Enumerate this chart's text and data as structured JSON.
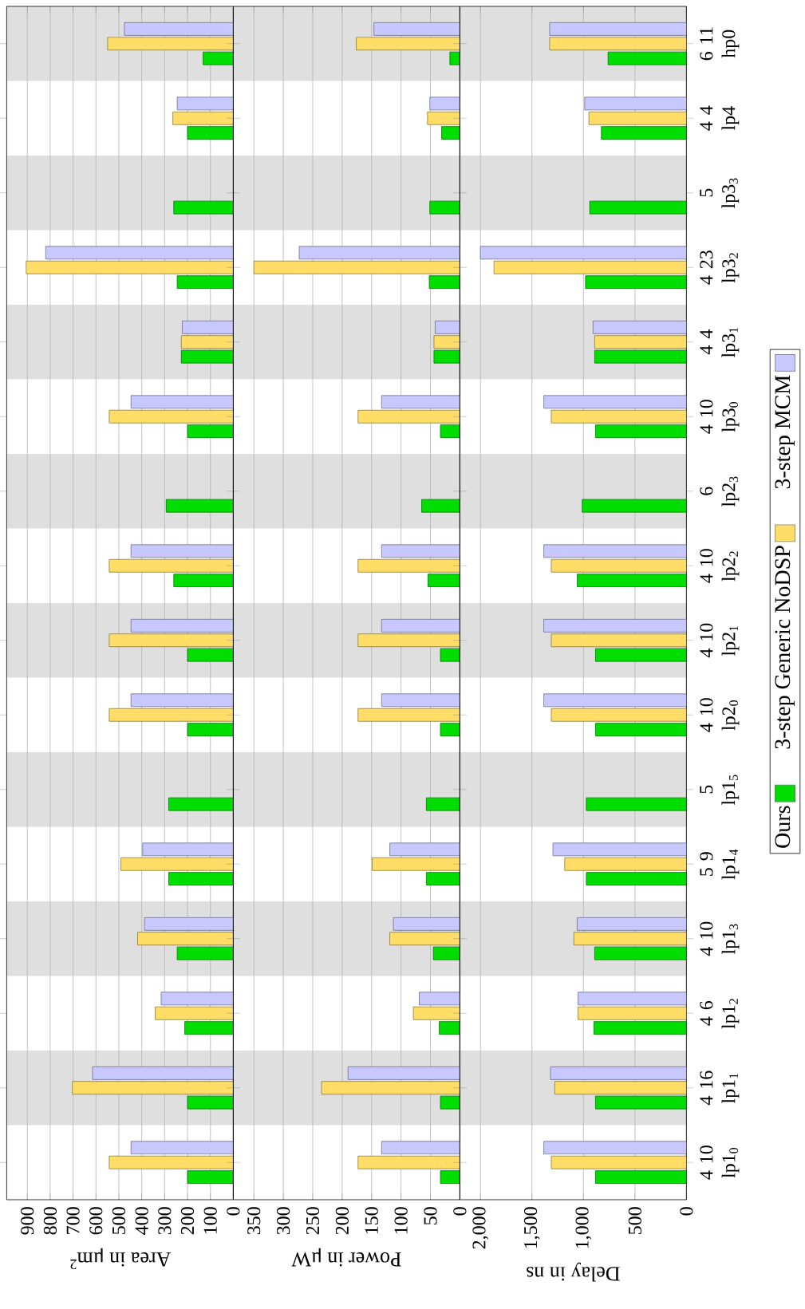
{
  "chart_data": [
    {
      "type": "bar",
      "orientation": "horizontal",
      "xlabel": "Area in μm$^{2}$",
      "tick_labels": "x",
      "grid": "x",
      "categories": [
        null,
        null,
        null,
        null,
        null,
        null,
        null,
        null,
        null,
        null,
        null,
        null,
        null,
        null,
        null,
        null
      ],
      "xlim": [
        990,
        0
      ],
      "xticks": [
        0,
        100,
        200,
        300,
        400,
        500,
        600,
        700,
        800,
        900
      ],
      "series": [
        {
          "color": "#00dd00",
          "values": [
            132,
            200,
            260,
            245,
            227,
            200,
            293,
            260,
            200,
            200,
            282,
            282,
            245,
            212,
            200,
            200
          ]
        },
        {
          "color": "#ffdd66",
          "values": [
            549,
            264,
            null,
            905,
            227,
            542,
            null,
            542,
            542,
            542,
            null,
            491,
            418,
            341,
            703,
            542
          ]
        },
        {
          "color": "#c8c8ff",
          "values": [
            476,
            245,
            null,
            820,
            223,
            447,
            null,
            447,
            447,
            447,
            null,
            396,
            388,
            315,
            615,
            447
          ]
        }
      ]
    },
    {
      "type": "bar",
      "orientation": "horizontal",
      "xlabel": "Power in μW",
      "tick_labels": "x",
      "grid": "x",
      "categories": [
        null,
        null,
        null,
        null,
        null,
        null,
        null,
        null,
        null,
        null,
        null,
        null,
        null,
        null,
        null,
        null
      ],
      "xlim": [
        385,
        0
      ],
      "xticks": [
        0,
        50,
        100,
        150,
        200,
        250,
        300,
        350
      ],
      "series": [
        {
          "color": "#00dd00",
          "values": [
            17,
            31,
            51,
            52,
            44,
            33,
            65,
            54,
            33,
            33,
            57,
            57,
            45,
            35,
            33,
            33
          ]
        },
        {
          "color": "#ffdd66",
          "values": [
            176,
            55,
            null,
            350,
            44,
            173,
            null,
            173,
            173,
            173,
            null,
            149,
            119,
            79,
            235,
            173
          ]
        },
        {
          "color": "#c8c8ff",
          "values": [
            146,
            51,
            null,
            273,
            42,
            133,
            null,
            133,
            133,
            133,
            null,
            119,
            113,
            69,
            190,
            133
          ]
        }
      ]
    },
    {
      "type": "bar",
      "orientation": "horizontal",
      "xlabel": "Delay in ns",
      "grid": "x",
      "legend": "right",
      "categories": [
        "6 11 hp0",
        "4 4 lp4",
        "5 lp3$_{3}$",
        "4 23 lp3$_{2}$",
        "4 4 lp3$_{1}$",
        "4 10 lp3$_{0}$",
        "6 lp2$_{3}$",
        "4 10 lp2$_{2}$",
        "4 10 lp2$_{1}$",
        "4 10 lp2$_{0}$",
        "5 lp1$_{5}$",
        "5 9 lp1$_{4}$",
        "4 10 lp1$_{3}$",
        "4 6 lp1$_{2}$",
        "4 16 lp1$_{1}$",
        "4 10 lp1$_{0}$"
      ],
      "xlim": [
        2200,
        0
      ],
      "xticks": [
        0,
        500,
        {
          "value": 1000,
          "label": "1,000"
        },
        {
          "value": 1500,
          "label": "1,500"
        },
        {
          "value": 2000,
          "label": "2,000"
        }
      ],
      "series": [
        {
          "name": "Ours",
          "color": "#00dd00",
          "values": [
            761,
            826,
            939,
            980,
            891,
            883,
            1012,
            1061,
            883,
            883,
            972,
            972,
            891,
            899,
            883,
            883
          ]
        },
        {
          "name": "3-step Generic NoDSP",
          "color": "#ffdd66",
          "values": [
            1328,
            947,
            null,
            1870,
            891,
            1312,
            null,
            1312,
            1312,
            1312,
            null,
            1182,
            1093,
            1053,
            1279,
            1312
          ]
        },
        {
          "name": "3-step MCM",
          "color": "#c8c8ff",
          "values": [
            1328,
            988,
            null,
            2000,
            907,
            1385,
            null,
            1385,
            1385,
            1385,
            null,
            1296,
            1061,
            1053,
            1320,
            1385
          ]
        }
      ]
    }
  ]
}
